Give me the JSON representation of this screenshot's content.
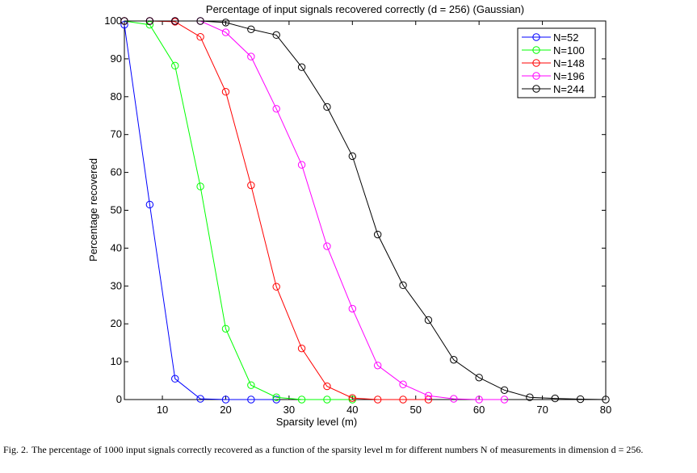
{
  "chart_data": {
    "type": "line",
    "title": "Percentage of input signals recovered correctly (d = 256) (Gaussian)",
    "xlabel": "Sparsity level (m)",
    "ylabel": "Percentage recovered",
    "xlim": [
      4,
      80
    ],
    "ylim": [
      0,
      100
    ],
    "xticks": [
      10,
      20,
      30,
      40,
      50,
      60,
      70,
      80
    ],
    "yticks": [
      0,
      10,
      20,
      30,
      40,
      50,
      60,
      70,
      80,
      90,
      100
    ],
    "grid": false,
    "legend_position": "top-right",
    "marker": "circle",
    "series": [
      {
        "name": "N=52",
        "color": "#0000ff",
        "x": [
          4,
          8,
          12,
          16,
          20,
          24,
          28
        ],
        "y": [
          99,
          51.5,
          5.5,
          0.2,
          0,
          0,
          0
        ]
      },
      {
        "name": "N=100",
        "color": "#00ff00",
        "x": [
          4,
          8,
          12,
          16,
          20,
          24,
          28,
          32,
          36,
          40
        ],
        "y": [
          100,
          99,
          88.2,
          56.3,
          18.7,
          3.8,
          0.6,
          0,
          0,
          0
        ]
      },
      {
        "name": "N=148",
        "color": "#ff0000",
        "x": [
          4,
          8,
          12,
          16,
          20,
          24,
          28,
          32,
          36,
          40,
          44,
          48,
          52
        ],
        "y": [
          100,
          100,
          99.8,
          95.8,
          81.3,
          56.6,
          29.8,
          13.5,
          3.5,
          0.4,
          0,
          0,
          0
        ]
      },
      {
        "name": "N=196",
        "color": "#ff00ff",
        "x": [
          4,
          8,
          12,
          16,
          20,
          24,
          28,
          32,
          36,
          40,
          44,
          48,
          52,
          56,
          60,
          64
        ],
        "y": [
          100,
          100,
          100,
          100,
          97,
          90.6,
          76.8,
          62,
          40.5,
          24,
          9,
          4,
          1,
          0.2,
          0,
          0
        ]
      },
      {
        "name": "N=244",
        "color": "#000000",
        "x": [
          4,
          8,
          12,
          16,
          20,
          24,
          28,
          32,
          36,
          40,
          44,
          48,
          52,
          56,
          60,
          64,
          68,
          72,
          76,
          80
        ],
        "y": [
          100,
          100,
          100,
          100,
          99.6,
          97.8,
          96.3,
          87.8,
          77.3,
          64.3,
          43.6,
          30.2,
          21,
          10.5,
          5.8,
          2.5,
          0.6,
          0.3,
          0.1,
          0
        ]
      }
    ]
  },
  "caption": {
    "label": "Fig. 2.",
    "text": "The percentage of 1000 input signals correctly recovered as a function of the sparsity level m for different numbers N of measurements in dimension d = 256."
  }
}
